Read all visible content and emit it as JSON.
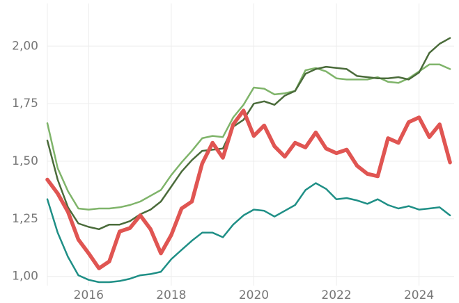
{
  "chart_data": {
    "type": "line",
    "x": [
      2015,
      2015.25,
      2015.5,
      2015.75,
      2016,
      2016.25,
      2016.5,
      2016.75,
      2017,
      2017.25,
      2017.5,
      2017.75,
      2018,
      2018.25,
      2018.5,
      2018.75,
      2019,
      2019.25,
      2019.5,
      2019.75,
      2020,
      2020.25,
      2020.5,
      2020.75,
      2021,
      2021.25,
      2021.5,
      2021.75,
      2022,
      2022.25,
      2022.5,
      2022.75,
      2023,
      2023.25,
      2023.5,
      2023.75,
      2024,
      2024.25,
      2024.5,
      2024.75
    ],
    "series": [
      {
        "color": "#7fb46a",
        "width": 2.5,
        "values": [
          1.665,
          1.47,
          1.37,
          1.295,
          1.29,
          1.295,
          1.295,
          1.3,
          1.31,
          1.325,
          1.35,
          1.375,
          1.44,
          1.495,
          1.545,
          1.6,
          1.61,
          1.605,
          1.69,
          1.745,
          1.82,
          1.815,
          1.79,
          1.795,
          1.805,
          1.895,
          1.905,
          1.89,
          1.86,
          1.855,
          1.855,
          1.855,
          1.865,
          1.845,
          1.84,
          1.86,
          1.89,
          1.92,
          1.92,
          1.9
        ]
      },
      {
        "color": "#4a6b3a",
        "width": 2.5,
        "values": [
          1.59,
          1.42,
          1.3,
          1.23,
          1.215,
          1.205,
          1.225,
          1.225,
          1.24,
          1.27,
          1.29,
          1.325,
          1.39,
          1.455,
          1.505,
          1.545,
          1.55,
          1.555,
          1.65,
          1.68,
          1.75,
          1.76,
          1.745,
          1.785,
          1.805,
          1.88,
          1.9,
          1.91,
          1.905,
          1.9,
          1.87,
          1.865,
          1.86,
          1.86,
          1.865,
          1.855,
          1.885,
          1.97,
          2.01,
          2.035
        ]
      },
      {
        "color": "#1f8f86",
        "width": 2.5,
        "values": [
          1.335,
          1.19,
          1.085,
          1.005,
          0.985,
          0.975,
          0.975,
          0.98,
          0.99,
          1.005,
          1.01,
          1.02,
          1.075,
          1.115,
          1.155,
          1.19,
          1.19,
          1.17,
          1.225,
          1.265,
          1.29,
          1.285,
          1.26,
          1.285,
          1.31,
          1.375,
          1.405,
          1.38,
          1.335,
          1.34,
          1.33,
          1.315,
          1.335,
          1.31,
          1.295,
          1.305,
          1.29,
          1.295,
          1.3,
          1.265
        ]
      },
      {
        "color": "#e05552",
        "width": 5.5,
        "values": [
          1.42,
          1.36,
          1.28,
          1.16,
          1.1,
          1.035,
          1.065,
          1.195,
          1.21,
          1.265,
          1.205,
          1.1,
          1.18,
          1.295,
          1.325,
          1.49,
          1.58,
          1.515,
          1.66,
          1.72,
          1.61,
          1.655,
          1.565,
          1.52,
          1.58,
          1.56,
          1.625,
          1.555,
          1.535,
          1.55,
          1.48,
          1.445,
          1.435,
          1.6,
          1.58,
          1.67,
          1.69,
          1.605,
          1.66,
          1.495
        ]
      }
    ],
    "xlim": [
      2015,
      2024.85
    ],
    "xticks": [
      2016,
      2018,
      2020,
      2022,
      2024
    ],
    "ylim": [
      0.96,
      2.2
    ],
    "yticks": [
      {
        "value": 1.0,
        "label": "1,00"
      },
      {
        "value": 1.25,
        "label": "1,25"
      },
      {
        "value": 1.5,
        "label": "1,50"
      },
      {
        "value": 1.75,
        "label": "1,75"
      },
      {
        "value": 2.0,
        "label": "2,00"
      }
    ],
    "grid": true
  }
}
